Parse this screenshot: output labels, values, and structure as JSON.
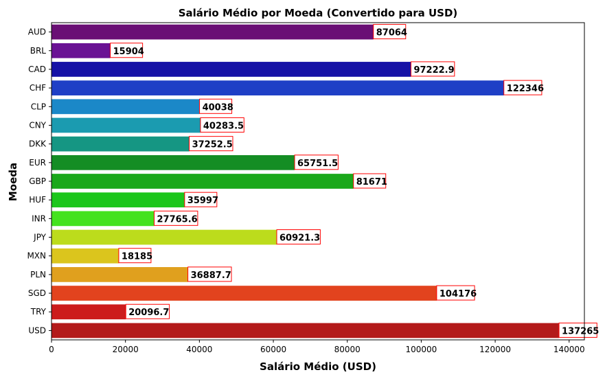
{
  "chart_data": {
    "type": "bar",
    "orientation": "horizontal",
    "title": "Salário Médio por Moeda (Convertido para USD)",
    "xlabel": "Salário Médio (USD)",
    "ylabel": "Moeda",
    "xlim": [
      0,
      144128
    ],
    "xticks": [
      0,
      20000,
      40000,
      60000,
      80000,
      100000,
      120000,
      140000
    ],
    "grid": false,
    "categories": [
      "AUD",
      "BRL",
      "CAD",
      "CHF",
      "CLP",
      "CNY",
      "DKK",
      "EUR",
      "GBP",
      "HUF",
      "INR",
      "JPY",
      "MXN",
      "PLN",
      "SGD",
      "TRY",
      "USD"
    ],
    "values": [
      87064,
      15904,
      97222.9,
      122346,
      40038,
      40283.5,
      37252.5,
      65751.5,
      81671,
      35997,
      27765.6,
      60921.3,
      18185,
      36887.7,
      104176,
      20096.7,
      137265
    ],
    "labels": [
      "87064",
      "15904",
      "97222.9",
      "122346",
      "40038",
      "40283.5",
      "37252.5",
      "65751.5",
      "81671",
      "35997",
      "27765.6",
      "60921.3",
      "18185",
      "36887.7",
      "104176",
      "20096.7",
      "137265"
    ],
    "colors": [
      "#6a0f75",
      "#6a1294",
      "#1612a6",
      "#1f3fc6",
      "#1b88c8",
      "#1b9bb0",
      "#159683",
      "#148d24",
      "#1aa81a",
      "#1cc61c",
      "#44e21e",
      "#bcdc1c",
      "#dbc51d",
      "#e0a01e",
      "#e2431e",
      "#cc1c1c",
      "#b31a1a"
    ],
    "label_box_border": "#ff0000"
  }
}
